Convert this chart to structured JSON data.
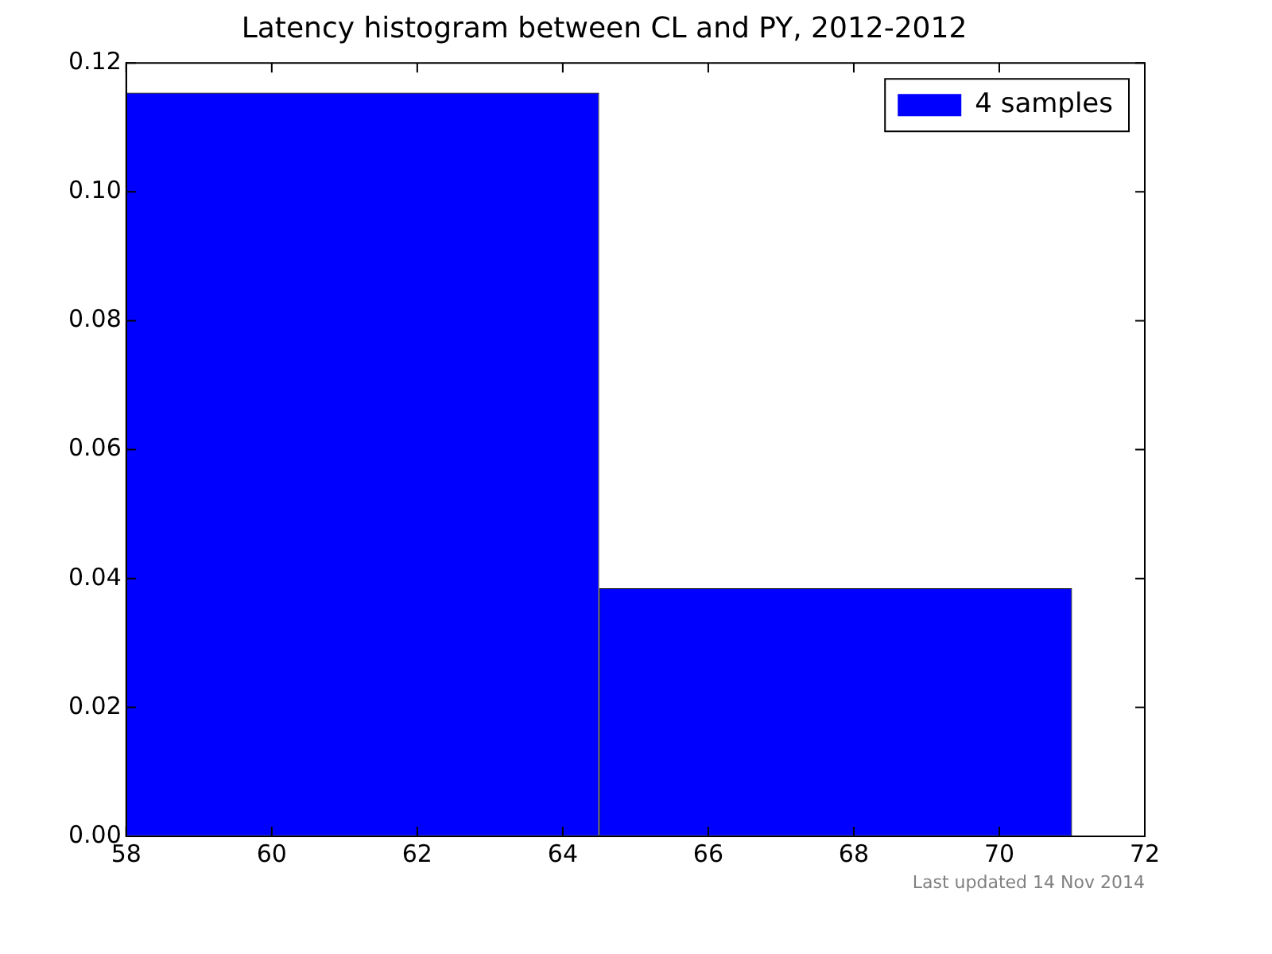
{
  "chart_data": {
    "type": "histogram",
    "title": "Latency histogram between CL and PY, 2012-2012",
    "bins": [
      58,
      64.5,
      71
    ],
    "series": [
      {
        "name": "4 samples",
        "color": "#0000ff",
        "values": [
          0.1154,
          0.0385
        ]
      }
    ],
    "xlim": [
      58,
      72
    ],
    "xticks": [
      58,
      60,
      62,
      64,
      66,
      68,
      70,
      72
    ],
    "ylim": [
      0,
      0.12
    ],
    "yticks": [
      {
        "value": 0,
        "label": "0.00"
      },
      {
        "value": 0.02,
        "label": "0.02"
      },
      {
        "value": 0.04,
        "label": "0.04"
      },
      {
        "value": 0.06,
        "label": "0.06"
      },
      {
        "value": 0.08,
        "label": "0.08"
      },
      {
        "value": 0.1,
        "label": "0.10"
      },
      {
        "value": 0.12,
        "label": "0.12"
      }
    ],
    "legend": "top right",
    "annotations": [
      "Last updated 14 Nov 2014"
    ]
  }
}
